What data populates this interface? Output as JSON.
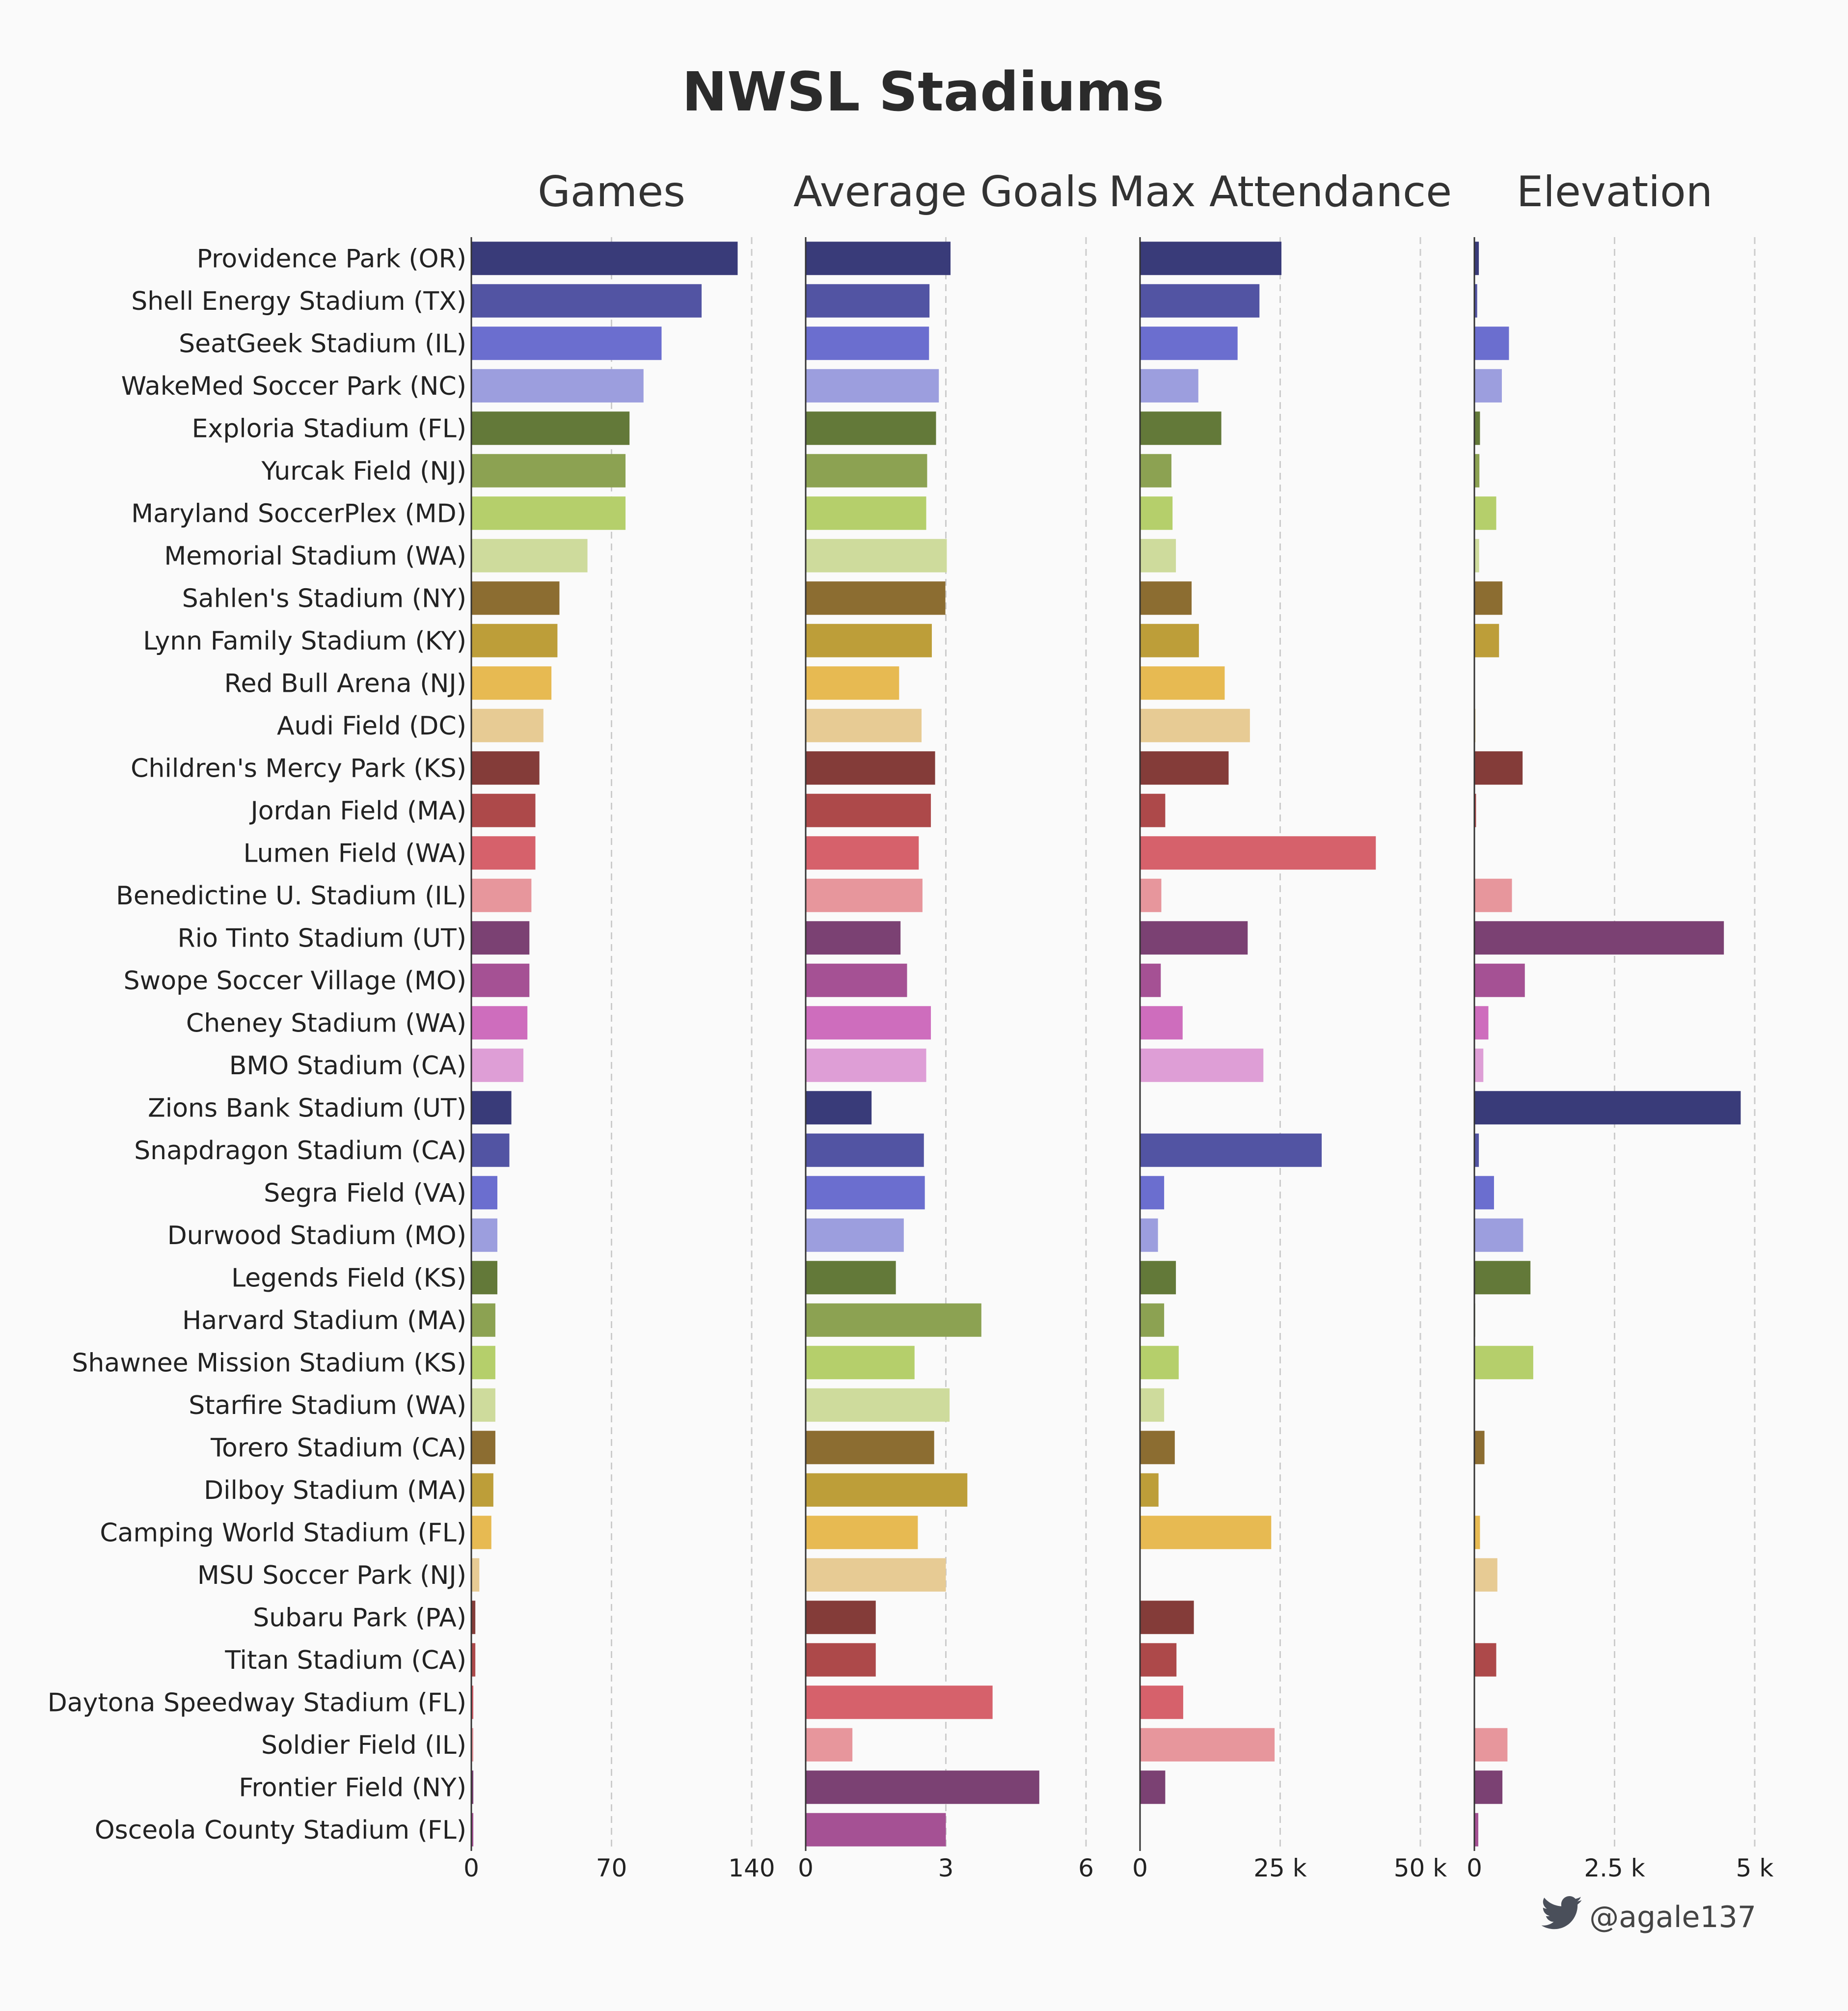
{
  "chart_data": {
    "type": "bar",
    "orientation": "horizontal",
    "title": "NWSL Stadiums",
    "categories": [
      "Providence Park (OR)",
      "Shell Energy Stadium (TX)",
      "SeatGeek Stadium (IL)",
      "WakeMed Soccer Park (NC)",
      "Exploria Stadium (FL)",
      "Yurcak Field (NJ)",
      "Maryland SoccerPlex (MD)",
      "Memorial Stadium (WA)",
      "Sahlen's Stadium (NY)",
      "Lynn Family Stadium (KY)",
      "Red Bull Arena (NJ)",
      "Audi Field (DC)",
      "Children's Mercy Park (KS)",
      "Jordan Field (MA)",
      "Lumen Field (WA)",
      "Benedictine U. Stadium (IL)",
      "Rio Tinto Stadium (UT)",
      "Swope Soccer Village (MO)",
      "Cheney Stadium (WA)",
      "BMO Stadium (CA)",
      "Zions Bank Stadium (UT)",
      "Snapdragon Stadium (CA)",
      "Segra Field (VA)",
      "Durwood Stadium (MO)",
      "Legends Field (KS)",
      "Harvard Stadium (MA)",
      "Shawnee Mission Stadium (KS)",
      "Starfire Stadium (WA)",
      "Torero Stadium (CA)",
      "Dilboy Stadium (MA)",
      "Camping World Stadium (FL)",
      "MSU Soccer Park (NJ)",
      "Subaru Park (PA)",
      "Titan Stadium (CA)",
      "Daytona Speedway Stadium (FL)",
      "Soldier Field (IL)",
      "Frontier Field (NY)",
      "Osceola County Stadium (FL)"
    ],
    "colors": [
      "#393b79",
      "#5254a3",
      "#6b6ecf",
      "#9c9ede",
      "#637939",
      "#8ca252",
      "#b5cf6b",
      "#cedb9c",
      "#8c6d31",
      "#bd9e39",
      "#e7ba52",
      "#e7cb94",
      "#843c39",
      "#ad494a",
      "#d6616b",
      "#e7969c",
      "#7b4173",
      "#a55194",
      "#ce6dbd",
      "#de9ed6",
      "#393b79",
      "#5254a3",
      "#6b6ecf",
      "#9c9ede",
      "#637939",
      "#8ca252",
      "#b5cf6b",
      "#cedb9c",
      "#8c6d31",
      "#bd9e39",
      "#e7ba52",
      "#e7cb94",
      "#843c39",
      "#ad494a",
      "#d6616b",
      "#e7969c",
      "#7b4173",
      "#a55194"
    ],
    "panels": [
      {
        "title": "Games",
        "xlim": [
          0,
          140
        ],
        "ticks": [
          0,
          70,
          140
        ],
        "tick_labels": [
          "0",
          "70",
          "140"
        ],
        "values": [
          133,
          115,
          95,
          86,
          79,
          77,
          77,
          58,
          44,
          43,
          40,
          36,
          34,
          32,
          32,
          30,
          29,
          29,
          28,
          26,
          20,
          19,
          13,
          13,
          13,
          12,
          12,
          12,
          12,
          11,
          10,
          4,
          2,
          2,
          1,
          1,
          1,
          1
        ]
      },
      {
        "title": "Average Goals",
        "xlim": [
          0,
          6
        ],
        "ticks": [
          0,
          3,
          6
        ],
        "tick_labels": [
          "0",
          "3",
          "6"
        ],
        "values": [
          3.1,
          2.65,
          2.64,
          2.85,
          2.79,
          2.6,
          2.58,
          3.02,
          2.99,
          2.7,
          2.0,
          2.48,
          2.77,
          2.68,
          2.42,
          2.5,
          2.03,
          2.17,
          2.68,
          2.58,
          1.41,
          2.53,
          2.55,
          2.1,
          1.93,
          3.76,
          2.33,
          3.08,
          2.75,
          3.46,
          2.4,
          3.0,
          1.5,
          1.5,
          4.0,
          1.0,
          5.0,
          3.0
        ]
      },
      {
        "title": "Max Attendance",
        "xlim": [
          0,
          50000
        ],
        "ticks": [
          0,
          25000,
          50000
        ],
        "tick_labels": [
          "0",
          "25 k",
          "50 k"
        ],
        "values": [
          25218,
          21300,
          17400,
          10400,
          14500,
          5600,
          5800,
          6400,
          9200,
          10500,
          15100,
          19600,
          15800,
          4500,
          42054,
          3800,
          19200,
          3700,
          7600,
          22000,
          0,
          32400,
          4300,
          3200,
          6400,
          4300,
          6900,
          4300,
          6200,
          3300,
          23400,
          0,
          9600,
          6500,
          7700,
          24000,
          4500,
          0
        ]
      },
      {
        "title": "Elevation",
        "xlim": [
          0,
          5000
        ],
        "ticks": [
          0,
          2500,
          5000
        ],
        "tick_labels": [
          "0",
          "2.5 k",
          "5 k"
        ],
        "values": [
          80,
          50,
          617,
          490,
          100,
          90,
          390,
          85,
          500,
          440,
          10,
          20,
          860,
          30,
          10,
          670,
          4450,
          900,
          250,
          160,
          4750,
          80,
          350,
          870,
          1000,
          15,
          1050,
          10,
          180,
          10,
          100,
          410,
          10,
          390,
          10,
          590,
          500,
          70
        ]
      }
    ],
    "grid": "vertical dashed",
    "legend": "none"
  },
  "credit": {
    "icon": "twitter-bird-icon",
    "handle": "@agale137"
  }
}
